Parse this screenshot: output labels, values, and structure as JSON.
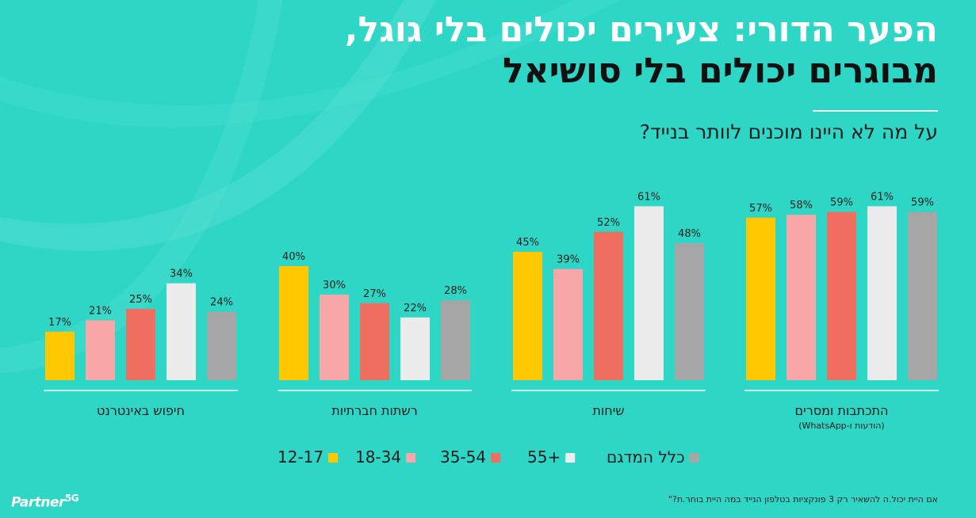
{
  "title_line1": "הפער הדורי: צעירים יכולים בלי גוגל,",
  "title_line2": "מבוגרים יכולים בלי סושיאל",
  "question": "על מה לא היינו מוכנים לוותר בנייד?",
  "footnote": "אם היית יכול.ה להשאיר רק 3 פונקציות בטלפון הנייד במה היית בוחר.ת?\"",
  "logo_text": "Partner",
  "logo_suffix": "5G",
  "chart_data": {
    "type": "bar",
    "title": "על מה לא היינו מוכנים לוותר בנייד?",
    "categories": [
      "התכתבות ומסרים",
      "שיחות",
      "רשתות חברתיות",
      "חיפוש באינטרנט"
    ],
    "category_notes": [
      "(הודעות ו-WhatsApp)",
      "",
      "",
      ""
    ],
    "value_suffix": "%",
    "ylim": [
      0,
      70
    ],
    "grid": false,
    "legend_position": "bottom",
    "series": [
      {
        "name": "12-17",
        "color": "#ffc800",
        "values": [
          57,
          45,
          40,
          17
        ]
      },
      {
        "name": "18-34",
        "color": "#f7a7a7",
        "values": [
          58,
          39,
          30,
          21
        ]
      },
      {
        "name": "35-54",
        "color": "#f06e60",
        "values": [
          59,
          52,
          27,
          25
        ]
      },
      {
        "name": "55+",
        "color": "#ececec",
        "values": [
          61,
          61,
          22,
          34
        ]
      },
      {
        "name": "כלל המדגם",
        "color": "#a6a6a6",
        "values": [
          59,
          48,
          28,
          24
        ]
      }
    ]
  }
}
